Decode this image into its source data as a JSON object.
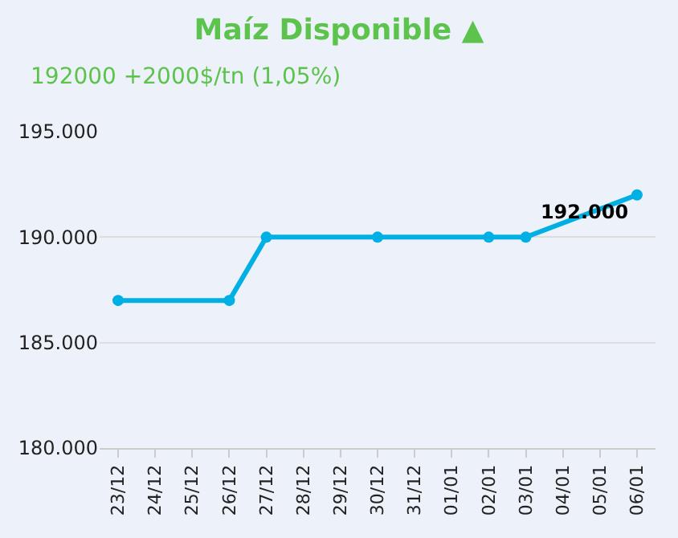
{
  "chart_data": {
    "type": "line",
    "title": "Maíz Disponible ▲",
    "subtitle": "192000 +2000$/tn (1,05%)",
    "categories": [
      "23/12",
      "24/12",
      "25/12",
      "26/12",
      "27/12",
      "28/12",
      "29/12",
      "30/12",
      "31/12",
      "01/01",
      "02/01",
      "03/01",
      "04/01",
      "05/01",
      "06/01"
    ],
    "series": [
      {
        "color": "#00b0e4",
        "values": [
          187000,
          null,
          null,
          187000,
          190000,
          null,
          null,
          190000,
          null,
          null,
          190000,
          190000,
          null,
          null,
          192000
        ],
        "value_labels": [
          null,
          null,
          null,
          null,
          null,
          null,
          null,
          null,
          null,
          null,
          null,
          null,
          null,
          null,
          "192.000"
        ]
      }
    ],
    "ylim": [
      180000,
      195000
    ],
    "yticks": [
      {
        "value": 180000,
        "label": "180.000"
      },
      {
        "value": 185000,
        "label": "185.000"
      },
      {
        "value": 190000,
        "label": "190.000"
      },
      {
        "value": 195000,
        "label": "195.000"
      }
    ],
    "grid": "y",
    "marker": "circle",
    "line_style": "solid"
  }
}
